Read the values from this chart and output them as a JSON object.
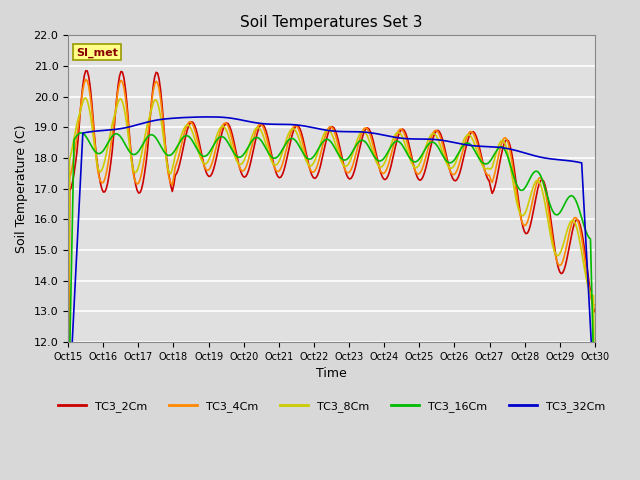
{
  "title": "Soil Temperatures Set 3",
  "xlabel": "Time",
  "ylabel": "Soil Temperature (C)",
  "ylim": [
    12.0,
    22.0
  ],
  "yticks": [
    12.0,
    13.0,
    14.0,
    15.0,
    16.0,
    17.0,
    18.0,
    19.0,
    20.0,
    21.0,
    22.0
  ],
  "xtick_labels": [
    "Oct 15",
    "Oct 16",
    "Oct 17",
    "Oct 18",
    "Oct 19",
    "Oct 20",
    "Oct 21",
    "Oct 22",
    "Oct 23",
    "Oct 24",
    "Oct 25",
    "Oct 26",
    "Oct 27",
    "Oct 28",
    "Oct 29",
    "Oct 30"
  ],
  "series_colors": [
    "#cc0000",
    "#ff8800",
    "#cccc00",
    "#00bb00",
    "#0000cc"
  ],
  "series_names": [
    "TC3_2Cm",
    "TC3_4Cm",
    "TC3_8Cm",
    "TC3_16Cm",
    "TC3_32Cm"
  ],
  "legend_label": "SI_met",
  "fig_bg_color": "#d8d8d8",
  "plot_bg_color": "#e0e0e0",
  "grid_color": "#ffffff"
}
